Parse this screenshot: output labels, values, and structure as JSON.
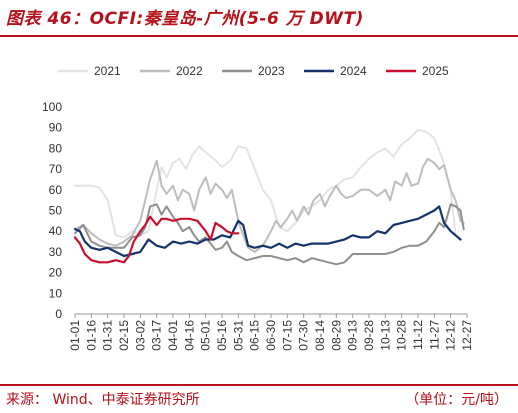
{
  "header": {
    "title": "图表 46：OCFI:秦皇岛-广州(5-6 万 DWT)"
  },
  "footer": {
    "source": "来源：  Wind、中泰证券研究所",
    "unit": "（单位：元/吨）"
  },
  "chart_data": {
    "type": "line",
    "title": "",
    "xlabel": "",
    "ylabel": "",
    "ylim": [
      0,
      100
    ],
    "yticks": [
      0,
      10,
      20,
      30,
      40,
      50,
      60,
      70,
      80,
      90,
      100
    ],
    "xticks": [
      "01-01",
      "01-16",
      "01-31",
      "02-15",
      "03-02",
      "03-17",
      "04-01",
      "04-16",
      "05-01",
      "05-16",
      "05-31",
      "06-15",
      "06-30",
      "07-15",
      "07-30",
      "08-14",
      "08-29",
      "09-13",
      "09-28",
      "10-13",
      "10-28",
      "11-12",
      "11-27",
      "12-12",
      "12-27"
    ],
    "grid": false,
    "legend_position": "top",
    "series": [
      {
        "name": "2021",
        "color": "#e3e3e3",
        "points": [
          [
            0,
            62
          ],
          [
            1,
            62
          ],
          [
            1.5,
            61
          ],
          [
            2,
            55
          ],
          [
            2.5,
            38
          ],
          [
            3,
            37
          ],
          [
            3.5,
            40
          ],
          [
            4,
            38
          ],
          [
            4.5,
            40
          ],
          [
            5,
            60
          ],
          [
            5.3,
            71
          ],
          [
            5.6,
            66
          ],
          [
            6,
            73
          ],
          [
            6.4,
            75
          ],
          [
            6.8,
            70
          ],
          [
            7.2,
            77
          ],
          [
            7.6,
            81
          ],
          [
            8,
            78
          ],
          [
            8.5,
            75
          ],
          [
            9,
            71
          ],
          [
            9.5,
            74
          ],
          [
            10,
            81
          ],
          [
            10.5,
            80
          ],
          [
            11,
            70
          ],
          [
            11.5,
            60
          ],
          [
            12,
            55
          ],
          [
            12.5,
            42
          ],
          [
            13,
            40
          ],
          [
            13.5,
            44
          ],
          [
            14,
            50
          ],
          [
            14.5,
            52
          ],
          [
            15,
            55
          ],
          [
            15.5,
            60
          ],
          [
            16,
            62
          ],
          [
            16.5,
            65
          ],
          [
            17,
            66
          ],
          [
            17.5,
            71
          ],
          [
            18,
            75
          ],
          [
            18.5,
            78
          ],
          [
            19,
            80
          ],
          [
            19.5,
            76
          ],
          [
            20,
            82
          ],
          [
            20.5,
            85
          ],
          [
            21,
            89
          ],
          [
            21.5,
            88
          ],
          [
            22,
            85
          ],
          [
            22.5,
            75
          ],
          [
            23,
            60
          ],
          [
            23.3,
            38
          ]
        ]
      },
      {
        "name": "2022",
        "color": "#bdbdbd",
        "points": [
          [
            0,
            41
          ],
          [
            0.5,
            43
          ],
          [
            1,
            39
          ],
          [
            1.5,
            36
          ],
          [
            2,
            34
          ],
          [
            2.5,
            33
          ],
          [
            3,
            35
          ],
          [
            3.5,
            38
          ],
          [
            4,
            45
          ],
          [
            4.3,
            55
          ],
          [
            4.6,
            65
          ],
          [
            5,
            74
          ],
          [
            5.3,
            62
          ],
          [
            5.6,
            58
          ],
          [
            6,
            62
          ],
          [
            6.3,
            55
          ],
          [
            6.6,
            60
          ],
          [
            7,
            58
          ],
          [
            7.3,
            50
          ],
          [
            7.6,
            60
          ],
          [
            8,
            66
          ],
          [
            8.3,
            58
          ],
          [
            8.6,
            63
          ],
          [
            9,
            60
          ],
          [
            9.3,
            56
          ],
          [
            9.6,
            60
          ],
          [
            10,
            45
          ],
          [
            10.3,
            38
          ],
          [
            10.6,
            32
          ],
          [
            11,
            30
          ],
          [
            11.5,
            33
          ],
          [
            12,
            40
          ],
          [
            12.3,
            45
          ],
          [
            12.6,
            42
          ],
          [
            13,
            46
          ],
          [
            13.3,
            50
          ],
          [
            13.6,
            45
          ],
          [
            14,
            52
          ],
          [
            14.3,
            48
          ],
          [
            14.6,
            55
          ],
          [
            15,
            58
          ],
          [
            15.3,
            52
          ],
          [
            15.6,
            57
          ],
          [
            16,
            62
          ],
          [
            16.3,
            58
          ],
          [
            16.6,
            56
          ],
          [
            17,
            57
          ],
          [
            17.5,
            60
          ],
          [
            18,
            60
          ],
          [
            18.5,
            57
          ],
          [
            19,
            60
          ],
          [
            19.3,
            55
          ],
          [
            19.6,
            64
          ],
          [
            20,
            62
          ],
          [
            20.3,
            68
          ],
          [
            20.6,
            62
          ],
          [
            21,
            63
          ],
          [
            21.3,
            71
          ],
          [
            21.6,
            75
          ],
          [
            22,
            73
          ],
          [
            22.3,
            70
          ],
          [
            22.6,
            72
          ],
          [
            23,
            60
          ],
          [
            23.3,
            55
          ],
          [
            23.6,
            45
          ],
          [
            23.8,
            44
          ]
        ]
      },
      {
        "name": "2023",
        "color": "#8f8f8f",
        "points": [
          [
            0,
            39
          ],
          [
            0.5,
            43
          ],
          [
            1,
            35
          ],
          [
            1.5,
            33
          ],
          [
            2,
            32
          ],
          [
            2.5,
            32
          ],
          [
            3,
            32
          ],
          [
            3.5,
            37
          ],
          [
            4,
            38
          ],
          [
            4.3,
            42
          ],
          [
            4.6,
            52
          ],
          [
            5,
            53
          ],
          [
            5.3,
            48
          ],
          [
            5.6,
            52
          ],
          [
            6,
            47
          ],
          [
            6.3,
            44
          ],
          [
            6.6,
            40
          ],
          [
            7,
            42
          ],
          [
            7.3,
            38
          ],
          [
            7.6,
            35
          ],
          [
            8,
            37
          ],
          [
            8.3,
            34
          ],
          [
            8.6,
            31
          ],
          [
            9,
            32
          ],
          [
            9.3,
            35
          ],
          [
            9.6,
            30
          ],
          [
            10,
            28
          ],
          [
            10.5,
            26
          ],
          [
            11,
            27
          ],
          [
            11.5,
            28
          ],
          [
            12,
            28
          ],
          [
            12.5,
            27
          ],
          [
            13,
            26
          ],
          [
            13.5,
            27
          ],
          [
            14,
            25
          ],
          [
            14.5,
            27
          ],
          [
            15,
            26
          ],
          [
            15.5,
            25
          ],
          [
            16,
            24
          ],
          [
            16.5,
            25
          ],
          [
            17,
            29
          ],
          [
            17.5,
            29
          ],
          [
            18,
            29
          ],
          [
            18.5,
            29
          ],
          [
            19,
            29
          ],
          [
            19.5,
            30
          ],
          [
            20,
            32
          ],
          [
            20.5,
            33
          ],
          [
            21,
            33
          ],
          [
            21.5,
            35
          ],
          [
            22,
            40
          ],
          [
            22.3,
            44
          ],
          [
            22.6,
            42
          ],
          [
            23,
            53
          ],
          [
            23.3,
            52
          ],
          [
            23.6,
            50
          ],
          [
            23.8,
            41
          ]
        ]
      },
      {
        "name": "2024",
        "color": "#14336b",
        "points": [
          [
            0,
            41
          ],
          [
            0.3,
            40
          ],
          [
            0.6,
            35
          ],
          [
            1,
            32
          ],
          [
            1.5,
            31
          ],
          [
            2,
            32
          ],
          [
            2.5,
            30
          ],
          [
            3,
            28
          ],
          [
            3.5,
            29
          ],
          [
            4,
            30
          ],
          [
            4.5,
            36
          ],
          [
            5,
            33
          ],
          [
            5.5,
            32
          ],
          [
            6,
            35
          ],
          [
            6.5,
            34
          ],
          [
            7,
            35
          ],
          [
            7.5,
            34
          ],
          [
            8,
            36
          ],
          [
            8.5,
            36
          ],
          [
            9,
            38
          ],
          [
            9.5,
            37
          ],
          [
            10,
            45
          ],
          [
            10.3,
            43
          ],
          [
            10.6,
            33
          ],
          [
            11,
            32
          ],
          [
            11.5,
            33
          ],
          [
            12,
            32
          ],
          [
            12.5,
            34
          ],
          [
            13,
            32
          ],
          [
            13.5,
            34
          ],
          [
            14,
            33
          ],
          [
            14.5,
            34
          ],
          [
            15,
            34
          ],
          [
            15.5,
            34
          ],
          [
            16,
            35
          ],
          [
            16.5,
            36
          ],
          [
            17,
            38
          ],
          [
            17.5,
            37
          ],
          [
            18,
            37
          ],
          [
            18.5,
            40
          ],
          [
            19,
            39
          ],
          [
            19.5,
            43
          ],
          [
            20,
            44
          ],
          [
            20.5,
            45
          ],
          [
            21,
            46
          ],
          [
            21.5,
            48
          ],
          [
            22,
            50
          ],
          [
            22.3,
            52
          ],
          [
            22.6,
            44
          ],
          [
            23,
            40
          ],
          [
            23.3,
            38
          ],
          [
            23.6,
            36
          ]
        ]
      },
      {
        "name": "2025",
        "color": "#c8102e",
        "points": [
          [
            0,
            37
          ],
          [
            0.3,
            34
          ],
          [
            0.6,
            29
          ],
          [
            1,
            26
          ],
          [
            1.5,
            25
          ],
          [
            2,
            25
          ],
          [
            2.5,
            26
          ],
          [
            3,
            25
          ],
          [
            3.3,
            28
          ],
          [
            3.6,
            35
          ],
          [
            4,
            40
          ],
          [
            4.3,
            43
          ],
          [
            4.6,
            47
          ],
          [
            5,
            43
          ],
          [
            5.3,
            46
          ],
          [
            5.6,
            46
          ],
          [
            6,
            45
          ],
          [
            6.5,
            46
          ],
          [
            7,
            46
          ],
          [
            7.5,
            45
          ],
          [
            8,
            40
          ],
          [
            8.3,
            36
          ],
          [
            8.6,
            44
          ],
          [
            9,
            42
          ],
          [
            9.3,
            40
          ],
          [
            9.6,
            39
          ],
          [
            10,
            39
          ]
        ]
      }
    ]
  }
}
